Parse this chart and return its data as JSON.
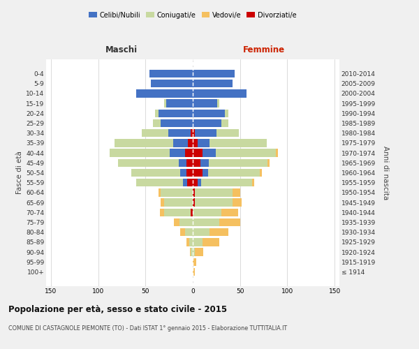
{
  "age_groups": [
    "100+",
    "95-99",
    "90-94",
    "85-89",
    "80-84",
    "75-79",
    "70-74",
    "65-69",
    "60-64",
    "55-59",
    "50-54",
    "45-49",
    "40-44",
    "35-39",
    "30-34",
    "25-29",
    "20-24",
    "15-19",
    "10-14",
    "5-9",
    "0-4"
  ],
  "birth_years": [
    "≤ 1914",
    "1915-1919",
    "1920-1924",
    "1925-1929",
    "1930-1934",
    "1935-1939",
    "1940-1944",
    "1945-1949",
    "1950-1954",
    "1955-1959",
    "1960-1964",
    "1965-1969",
    "1970-1974",
    "1975-1979",
    "1980-1984",
    "1985-1989",
    "1990-1994",
    "1995-1999",
    "2000-2004",
    "2005-2009",
    "2010-2014"
  ],
  "male_celibe": [
    0,
    0,
    0,
    0,
    0,
    0,
    0,
    0,
    0,
    4,
    6,
    8,
    16,
    16,
    24,
    34,
    36,
    28,
    60,
    44,
    46
  ],
  "male_coniugato": [
    0,
    0,
    2,
    4,
    8,
    14,
    28,
    30,
    34,
    50,
    52,
    64,
    64,
    62,
    28,
    8,
    4,
    2,
    0,
    0,
    0
  ],
  "male_vedovo": [
    0,
    0,
    1,
    3,
    5,
    6,
    5,
    4,
    2,
    0,
    0,
    0,
    0,
    0,
    0,
    0,
    0,
    0,
    0,
    0,
    0
  ],
  "male_divorziato": [
    0,
    0,
    0,
    0,
    0,
    0,
    2,
    0,
    0,
    6,
    7,
    7,
    8,
    5,
    2,
    0,
    0,
    0,
    0,
    0,
    0
  ],
  "female_celibe": [
    0,
    0,
    0,
    0,
    0,
    0,
    0,
    0,
    0,
    4,
    6,
    9,
    14,
    13,
    23,
    30,
    34,
    26,
    57,
    42,
    44
  ],
  "female_coniugato": [
    0,
    0,
    2,
    10,
    18,
    28,
    30,
    40,
    40,
    54,
    55,
    62,
    64,
    60,
    24,
    8,
    4,
    2,
    0,
    0,
    0
  ],
  "female_vedovo": [
    2,
    4,
    9,
    18,
    20,
    22,
    18,
    10,
    8,
    2,
    2,
    2,
    2,
    0,
    0,
    0,
    0,
    0,
    0,
    0,
    0
  ],
  "female_divorziato": [
    0,
    0,
    0,
    0,
    0,
    0,
    0,
    2,
    2,
    5,
    10,
    8,
    10,
    5,
    2,
    0,
    0,
    0,
    0,
    0,
    0
  ],
  "colors": {
    "celibe": "#4472C4",
    "coniugato": "#c8d9a0",
    "vedovo": "#f5c060",
    "divorziato": "#cc0000"
  },
  "legend_labels": [
    "Celibi/Nubili",
    "Coniugati/e",
    "Vedovi/e",
    "Divorziati/e"
  ],
  "title": "Popolazione per età, sesso e stato civile - 2015",
  "subtitle": "COMUNE DI CASTAGNOLE PIEMONTE (TO) - Dati ISTAT 1° gennaio 2015 - Elaborazione TUTTITALIA.IT",
  "label_maschi": "Maschi",
  "label_femmine": "Femmine",
  "ylabel_left": "Fasce di età",
  "ylabel_right": "Anni di nascita",
  "xlim": 155,
  "bg_color": "#f0f0f0",
  "plot_bg": "#ffffff"
}
